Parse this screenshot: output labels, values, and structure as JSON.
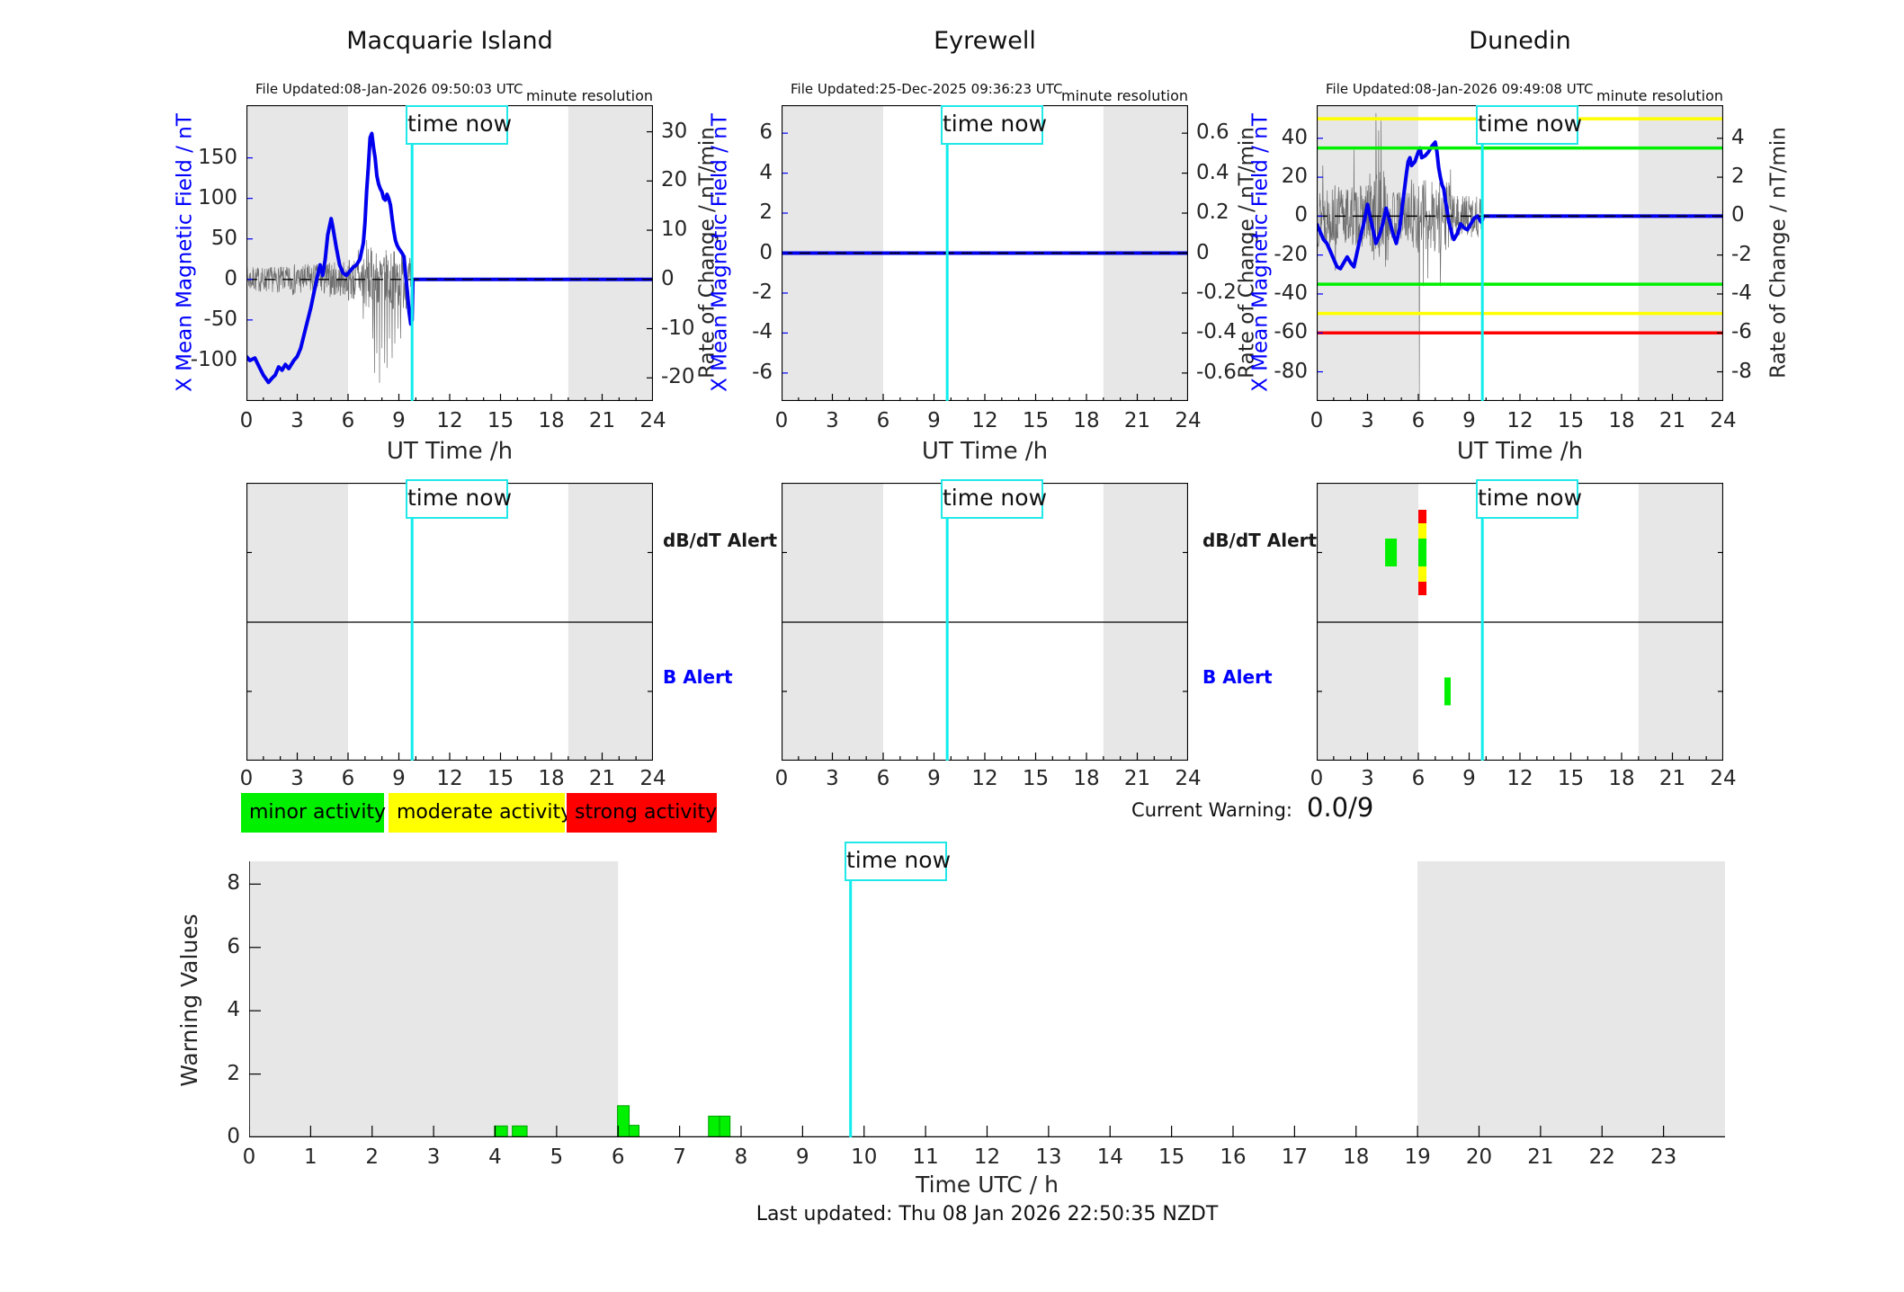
{
  "time_now": {
    "label": "time now",
    "hour": 9.78
  },
  "night_bands": [
    [
      0,
      6
    ],
    [
      19,
      24
    ]
  ],
  "colors": {
    "field_blue": "#0000ee",
    "noise_gray": "#6e6e6e",
    "night_band": "#e7e7e7",
    "accent_cyan": "#10eded",
    "minor_green": "#00f000",
    "moderate_yellow": "#ffff00",
    "strong_red": "#ff0000",
    "axis_blue": "#0000ff",
    "frame": "#000000"
  },
  "chart_data": [
    {
      "type": "line",
      "title": "Macquarie Island",
      "file_updated": "File Updated:08-Jan-2026 09:50:03 UTC",
      "resolution": "minute resolution",
      "xlabel": "UT Time /h",
      "xlim": [
        0,
        24
      ],
      "xticks": [
        0,
        3,
        6,
        9,
        12,
        15,
        18,
        21,
        24
      ],
      "y_left": {
        "label": "X Mean Magnetic Field / nT",
        "ticks": [
          150,
          100,
          50,
          0,
          -50,
          -100
        ],
        "lim": [
          -150,
          215
        ]
      },
      "y_right": {
        "label": "Rate of Change / nT/min",
        "ticks": [
          30,
          20,
          10,
          0,
          -10,
          -20
        ],
        "lim": [
          -24.7,
          35.4
        ]
      },
      "thresholds": [],
      "series": [
        [
          0,
          -95
        ],
        [
          0.2,
          -100
        ],
        [
          0.5,
          -97
        ],
        [
          0.8,
          -110
        ],
        [
          1.0,
          -118
        ],
        [
          1.3,
          -127
        ],
        [
          1.5,
          -122
        ],
        [
          1.7,
          -118
        ],
        [
          1.9,
          -108
        ],
        [
          2.1,
          -112
        ],
        [
          2.3,
          -105
        ],
        [
          2.5,
          -110
        ],
        [
          2.8,
          -100
        ],
        [
          3.0,
          -95
        ],
        [
          3.2,
          -85
        ],
        [
          3.5,
          -60
        ],
        [
          3.8,
          -35
        ],
        [
          4.0,
          -15
        ],
        [
          4.2,
          5
        ],
        [
          4.35,
          18
        ],
        [
          4.5,
          5
        ],
        [
          4.65,
          25
        ],
        [
          4.8,
          55
        ],
        [
          5.0,
          75
        ],
        [
          5.1,
          65
        ],
        [
          5.3,
          40
        ],
        [
          5.5,
          18
        ],
        [
          5.7,
          8
        ],
        [
          5.9,
          5
        ],
        [
          6.1,
          10
        ],
        [
          6.3,
          15
        ],
        [
          6.5,
          18
        ],
        [
          6.7,
          25
        ],
        [
          6.9,
          45
        ],
        [
          7.0,
          70
        ],
        [
          7.1,
          110
        ],
        [
          7.2,
          140
        ],
        [
          7.3,
          175
        ],
        [
          7.4,
          180
        ],
        [
          7.5,
          163
        ],
        [
          7.6,
          150
        ],
        [
          7.7,
          128
        ],
        [
          7.8,
          118
        ],
        [
          7.9,
          112
        ],
        [
          8.0,
          108
        ],
        [
          8.1,
          100
        ],
        [
          8.2,
          98
        ],
        [
          8.3,
          105
        ],
        [
          8.4,
          100
        ],
        [
          8.5,
          92
        ],
        [
          8.6,
          75
        ],
        [
          8.7,
          60
        ],
        [
          8.8,
          48
        ],
        [
          8.9,
          42
        ],
        [
          9.0,
          38
        ],
        [
          9.1,
          35
        ],
        [
          9.2,
          32
        ],
        [
          9.3,
          28
        ],
        [
          9.4,
          5
        ],
        [
          9.5,
          -15
        ],
        [
          9.6,
          -40
        ],
        [
          9.7,
          -55
        ],
        [
          9.78,
          -50
        ],
        [
          9.83,
          0
        ],
        [
          24,
          0
        ]
      ],
      "noise": {
        "seed": 7,
        "step": 0.02,
        "end": 9.78,
        "segments": [
          [
            0,
            2.5,
            2.6
          ],
          [
            2.5,
            4.5,
            3.2
          ],
          [
            4.5,
            6,
            3.6
          ],
          [
            6,
            6.8,
            4.5
          ],
          [
            6.8,
            7.4,
            6.5
          ],
          [
            7.4,
            9.5,
            6.0
          ],
          [
            9.5,
            9.78,
            4.5
          ]
        ],
        "spikes": [
          [
            6.6,
            6
          ],
          [
            6.9,
            -8
          ],
          [
            7.1,
            8
          ],
          [
            7.45,
            -12
          ],
          [
            7.55,
            -19
          ],
          [
            7.7,
            -15
          ],
          [
            7.85,
            -21
          ],
          [
            8.0,
            -14
          ],
          [
            8.15,
            -17
          ],
          [
            8.3,
            -18
          ],
          [
            8.45,
            -12
          ],
          [
            8.6,
            -16
          ],
          [
            8.75,
            -13
          ],
          [
            8.95,
            -10
          ],
          [
            9.1,
            -12
          ]
        ]
      }
    },
    {
      "type": "line",
      "title": "Eyrewell",
      "file_updated": "File Updated:25-Dec-2025 09:36:23 UTC",
      "resolution": "minute resolution",
      "xlabel": "UT Time /h",
      "xlim": [
        0,
        24
      ],
      "xticks": [
        0,
        3,
        6,
        9,
        12,
        15,
        18,
        21,
        24
      ],
      "y_left": {
        "label": "X Mean Magnetic Field / nT",
        "ticks": [
          6,
          4,
          2,
          0,
          -2,
          -4,
          -6
        ],
        "lim": [
          -7.4,
          7.4
        ]
      },
      "y_right": {
        "label": "Rate of Change / nT/min",
        "ticks": [
          0.6,
          0.4,
          0.2,
          0,
          -0.2,
          -0.4,
          -0.6
        ],
        "lim": [
          -0.74,
          0.74
        ]
      },
      "thresholds": [],
      "series": [
        [
          0,
          0
        ],
        [
          24,
          0
        ]
      ],
      "noise": null
    },
    {
      "type": "line",
      "title": "Dunedin",
      "file_updated": "File Updated:08-Jan-2026 09:49:08 UTC",
      "resolution": "minute resolution",
      "xlabel": "UT Time /h",
      "xlim": [
        0,
        24
      ],
      "xticks": [
        0,
        3,
        6,
        9,
        12,
        15,
        18,
        21,
        24
      ],
      "y_left": {
        "label": "X Mean Magnetic Field / nT",
        "ticks": [
          40,
          20,
          0,
          -20,
          -40,
          -60,
          -80
        ],
        "lim": [
          -95,
          57
        ]
      },
      "y_right": {
        "label": "Rate of Change / nT/min",
        "ticks": [
          4,
          2,
          0,
          -2,
          -4,
          -6,
          -8
        ],
        "lim": [
          -9.5,
          5.7
        ]
      },
      "thresholds": [
        {
          "value": 50,
          "color": "#ffff00"
        },
        {
          "value": 35,
          "color": "#00f000"
        },
        {
          "value": -35,
          "color": "#00f000"
        },
        {
          "value": -50,
          "color": "#ffff00"
        },
        {
          "value": -60,
          "color": "#ff0000"
        }
      ],
      "series": [
        [
          0,
          -4
        ],
        [
          0.2,
          -8
        ],
        [
          0.4,
          -12
        ],
        [
          0.6,
          -14
        ],
        [
          0.8,
          -18
        ],
        [
          1.0,
          -22
        ],
        [
          1.2,
          -26
        ],
        [
          1.4,
          -27
        ],
        [
          1.6,
          -24
        ],
        [
          1.8,
          -21
        ],
        [
          2.0,
          -24
        ],
        [
          2.2,
          -26
        ],
        [
          2.4,
          -18
        ],
        [
          2.6,
          -10
        ],
        [
          2.8,
          -3
        ],
        [
          3.0,
          6
        ],
        [
          3.1,
          2
        ],
        [
          3.3,
          -6
        ],
        [
          3.5,
          -14
        ],
        [
          3.7,
          -10
        ],
        [
          3.9,
          -4
        ],
        [
          4.1,
          4
        ],
        [
          4.3,
          -2
        ],
        [
          4.5,
          -9
        ],
        [
          4.7,
          -14
        ],
        [
          4.9,
          -6
        ],
        [
          5.1,
          8
        ],
        [
          5.3,
          22
        ],
        [
          5.4,
          28
        ],
        [
          5.5,
          30
        ],
        [
          5.6,
          26
        ],
        [
          5.8,
          28
        ],
        [
          6.0,
          33
        ],
        [
          6.1,
          35
        ],
        [
          6.2,
          30
        ],
        [
          6.4,
          31
        ],
        [
          6.6,
          33
        ],
        [
          6.8,
          36
        ],
        [
          7.0,
          38
        ],
        [
          7.1,
          33
        ],
        [
          7.2,
          25
        ],
        [
          7.3,
          20
        ],
        [
          7.4,
          16
        ],
        [
          7.5,
          14
        ],
        [
          7.6,
          8
        ],
        [
          7.7,
          3
        ],
        [
          7.8,
          -3
        ],
        [
          7.9,
          -6
        ],
        [
          8.0,
          -10
        ],
        [
          8.1,
          -12
        ],
        [
          8.3,
          -9
        ],
        [
          8.5,
          -4
        ],
        [
          8.7,
          -6
        ],
        [
          8.9,
          -7
        ],
        [
          9.1,
          -4
        ],
        [
          9.3,
          -1
        ],
        [
          9.5,
          0
        ],
        [
          9.7,
          -3
        ],
        [
          9.78,
          -2
        ],
        [
          9.83,
          0
        ],
        [
          24,
          0
        ]
      ],
      "noise": {
        "seed": 13,
        "step": 0.02,
        "end": 9.78,
        "segments": [
          [
            0,
            3,
            1.6
          ],
          [
            3,
            4.2,
            2.4
          ],
          [
            4.2,
            5.5,
            1.3
          ],
          [
            5.5,
            8,
            1.9
          ],
          [
            8,
            9.78,
            1.1
          ]
        ],
        "spikes": [
          [
            0.35,
            2.6
          ],
          [
            1.1,
            -2.8
          ],
          [
            2.2,
            3.4
          ],
          [
            3.5,
            5.3
          ],
          [
            3.65,
            4.4
          ],
          [
            3.8,
            4.9
          ],
          [
            4.05,
            -2.6
          ],
          [
            6.05,
            -9.6
          ],
          [
            6.3,
            -3.6
          ],
          [
            6.55,
            -3.2
          ],
          [
            7.3,
            -3.6
          ],
          [
            7.9,
            2.4
          ]
        ]
      }
    },
    {
      "type": "bar",
      "title": "Warning Values",
      "ylabel": "Warning Values",
      "xlabel": "Time UTC / h",
      "xlim": [
        0,
        24
      ],
      "ylim": [
        0,
        8.72
      ],
      "yticks": [
        0,
        2,
        4,
        6,
        8
      ],
      "xticks": [
        0,
        1,
        2,
        3,
        4,
        5,
        6,
        7,
        8,
        9,
        10,
        11,
        12,
        13,
        14,
        15,
        16,
        17,
        18,
        19,
        20,
        21,
        22,
        23
      ],
      "bars": [
        {
          "t0": 3.99,
          "t1": 4.2,
          "value": 0.36
        },
        {
          "t0": 4.28,
          "t1": 4.52,
          "value": 0.36
        },
        {
          "t0": 5.99,
          "t1": 6.18,
          "value": 1.0
        },
        {
          "t0": 6.18,
          "t1": 6.34,
          "value": 0.38
        },
        {
          "t0": 7.47,
          "t1": 7.65,
          "value": 0.67
        },
        {
          "t0": 7.65,
          "t1": 7.82,
          "value": 0.67
        }
      ]
    }
  ],
  "alert_charts": {
    "xticks": [
      0,
      3,
      6,
      9,
      12,
      15,
      18,
      21,
      24
    ],
    "rows": [
      {
        "id": "dbdt",
        "label": "dB/dT Alert",
        "color": "#1a1a1a"
      },
      {
        "id": "b",
        "label": "B Alert",
        "color": "#0000ff"
      }
    ],
    "bars": [
      {
        "station": 2,
        "row": "dbdt",
        "t0": 4.04,
        "t1": 4.73,
        "severity": "minor"
      },
      {
        "station": 2,
        "row": "dbdt",
        "t0": 6.0,
        "t1": 6.48,
        "severity": "strong"
      },
      {
        "station": 2,
        "row": "b",
        "t0": 7.54,
        "t1": 7.91,
        "severity": "minor"
      }
    ]
  },
  "legend": {
    "items": [
      {
        "label": "minor activity",
        "color": "#00f000"
      },
      {
        "label": "moderate activity",
        "color": "#ffff00"
      },
      {
        "label": "strong activity",
        "color": "#ff0000"
      }
    ]
  },
  "current_warning": {
    "label": "Current Warning:",
    "value": "0.0/9"
  },
  "footer": {
    "last_updated": "Last updated: Thu 08 Jan 2026 22:50:35 NZDT"
  }
}
